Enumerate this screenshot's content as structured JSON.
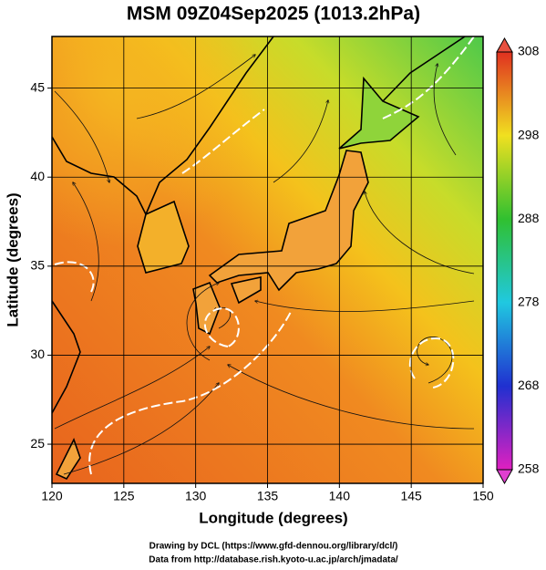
{
  "chart_data": {
    "type": "map",
    "title": "MSM 09Z04Sep2025 (1013.2hPa)",
    "x_label": "Longitude (degrees)",
    "y_label": "Latitude  (degrees)",
    "xlim": [
      120,
      150
    ],
    "ylim": [
      22.8,
      47.9
    ],
    "xticks": [
      120,
      125,
      130,
      135,
      140,
      145,
      150
    ],
    "yticks": [
      25,
      30,
      35,
      40,
      45
    ],
    "grid": true,
    "colorbar": {
      "lim": [
        258,
        308
      ],
      "ticks": [
        258,
        268,
        278,
        288,
        298,
        308
      ]
    },
    "credits": [
      "Drawing by DCL (https://www.gfd-dennou.org/library/dcl/)",
      "Data from http://database.rish.kyoto-u.ac.jp/arch/jmadata/"
    ]
  }
}
